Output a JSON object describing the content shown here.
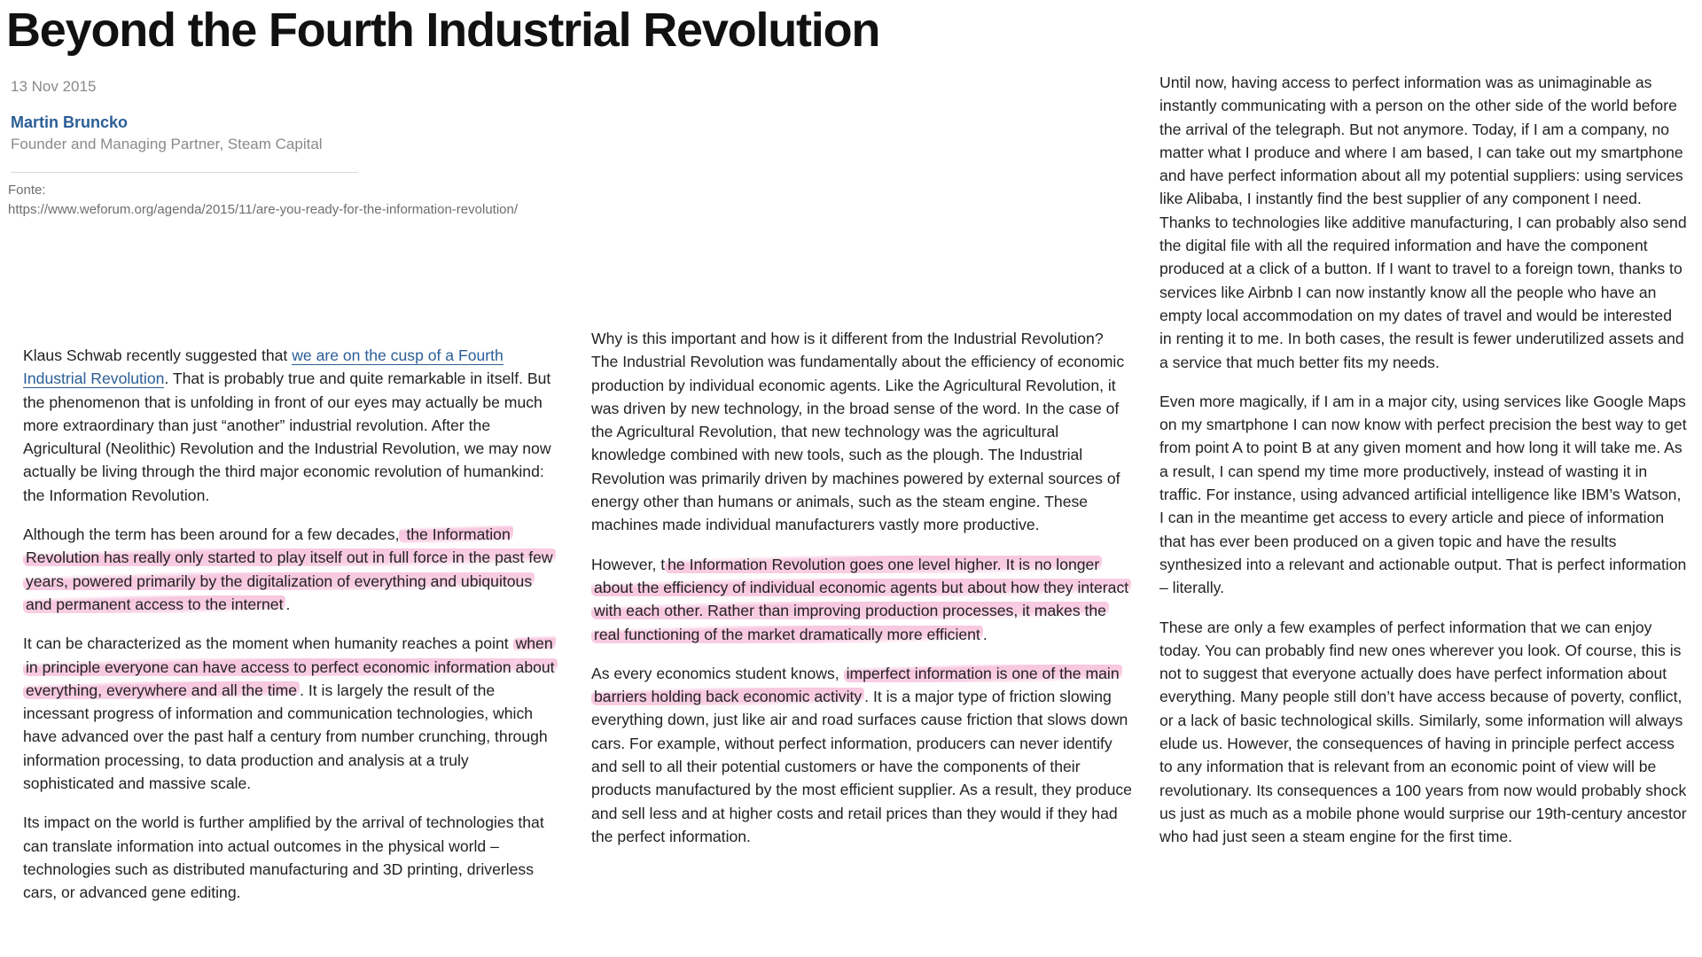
{
  "article": {
    "title": "Beyond the Fourth Industrial Revolution",
    "date": "13 Nov 2015",
    "author": {
      "name": "Martin Bruncko",
      "role": "Founder and Managing Partner, Steam Capital"
    },
    "source": {
      "label": "Fonte:",
      "url": "https://www.weforum.org/agenda/2015/11/are-you-ready-for-the-information-revolution/"
    }
  },
  "highlight_color": "#ec78b2",
  "link_color": "#2b5e96",
  "columns": {
    "left": {
      "p1": {
        "pre": "Klaus Schwab recently suggested that ",
        "link": "we are on the cusp of a Fourth Industrial Revolution",
        "post": ". That is probably true and quite remarkable in itself. But the phenomenon that is unfolding in front of our eyes may actually be much more extraordinary than just “another” industrial revolution. After the Agricultural (Neolithic) Revolution and the Industrial Revolution, we may now actually be living through the third major economic revolution of humankind: the Information Revolution."
      },
      "p2": {
        "pre": "Although the term has been around for a few decades,",
        "highlight": " the Information Revolution has really only started to play itself out in full force in the past few years, powered primarily by the digitalization of everything and ubiquitous and permanent access to the internet",
        "post": "."
      },
      "p3": {
        "pre": "It can be characterized as the moment when humanity reaches a point ",
        "highlight": "when in principle everyone can have access to perfect economic information about everything, everywhere and all the time",
        "post": ". It is largely the result of the incessant progress of information and communication technologies, which have advanced over the past half a century from number crunching, through information processing, to data production and analysis at a truly sophisticated and massive scale."
      },
      "p4": "Its impact on the world is further amplified by the arrival of technologies that can translate information into actual outcomes in the physical world – technologies such as distributed manufacturing and 3D printing, driverless cars, or advanced gene editing."
    },
    "middle": {
      "p1": "Why is this important and how is it different from the Industrial Revolution? The Industrial Revolution was fundamentally about the efficiency of economic production by individual economic agents. Like the Agricultural Revolution, it was driven by new technology, in the broad sense of the word. In the case of the Agricultural Revolution, that new technology was the agricultural knowledge combined with new tools, such as the plough. The Industrial Revolution was primarily driven by machines powered by external sources of energy other than humans or animals, such as the steam engine. These machines made individual manufacturers vastly more productive.",
      "p2": {
        "pre": "However, t",
        "highlight": "he Information Revolution goes one level higher. It is no longer about the efficiency of individual economic agents but about how they interact with each other. Rather than improving production processes, it makes the real functioning of the market dramatically more efficient",
        "post": "."
      },
      "p3": {
        "pre": "As every economics student knows, ",
        "highlight": "imperfect information is one of the main barriers holding back economic activity",
        "post": ". It is a major type of friction slowing everything down, just like air and road surfaces cause friction that slows down cars. For example, without perfect information, producers can never identify and sell to all their potential customers or have the components of their products manufactured by the most efficient supplier. As a result, they produce and sell less and at higher costs and retail prices than they would if they had the perfect information."
      }
    },
    "right": {
      "p1": "Until now, having access to perfect information was as unimaginable as instantly communicating with a person on the other side of the world before the arrival of the telegraph. But not anymore. Today, if I am a company, no matter what I produce and where I am based, I can take out my smartphone and have perfect information about all my potential suppliers: using services like Alibaba, I instantly find the best supplier of any component I need. Thanks to technologies like additive manufacturing, I can probably also send the digital file with all the required information and have the component produced at a click of a button. If I want to travel to a foreign town, thanks to services like Airbnb I can now instantly know all the people who have an empty local accommodation on my dates of travel and would be interested in renting it to me. In both cases, the result is fewer underutilized assets and a service that much better fits my needs.",
      "p2": "Even more magically, if I am in a major city, using services like Google Maps on my smartphone I can now know with perfect precision the best way to get from point A to point B at any given moment and how long it will take me.  As a result, I can spend my time more productively, instead of wasting it in traffic. For instance, using advanced artificial intelligence like IBM’s Watson, I can in the meantime get access to every article and piece of information that has ever been produced on a given topic and have the results synthesized into a relevant and actionable output. That is perfect information – literally.",
      "p3": "These are only a few examples of perfect information that we can enjoy today. You can probably find new ones wherever you look. Of course, this is not to suggest that everyone actually does have perfect information about everything. Many people still don’t have access because of poverty, conflict, or a lack of basic technological skills. Similarly, some information will always elude us. However, the consequences of having in principle perfect access to any information that is relevant from an economic point of view will be revolutionary. Its consequences a 100 years from now would probably shock us just as much as a mobile phone would surprise our 19th-century ancestor who had just seen a steam engine for the first time."
    }
  }
}
